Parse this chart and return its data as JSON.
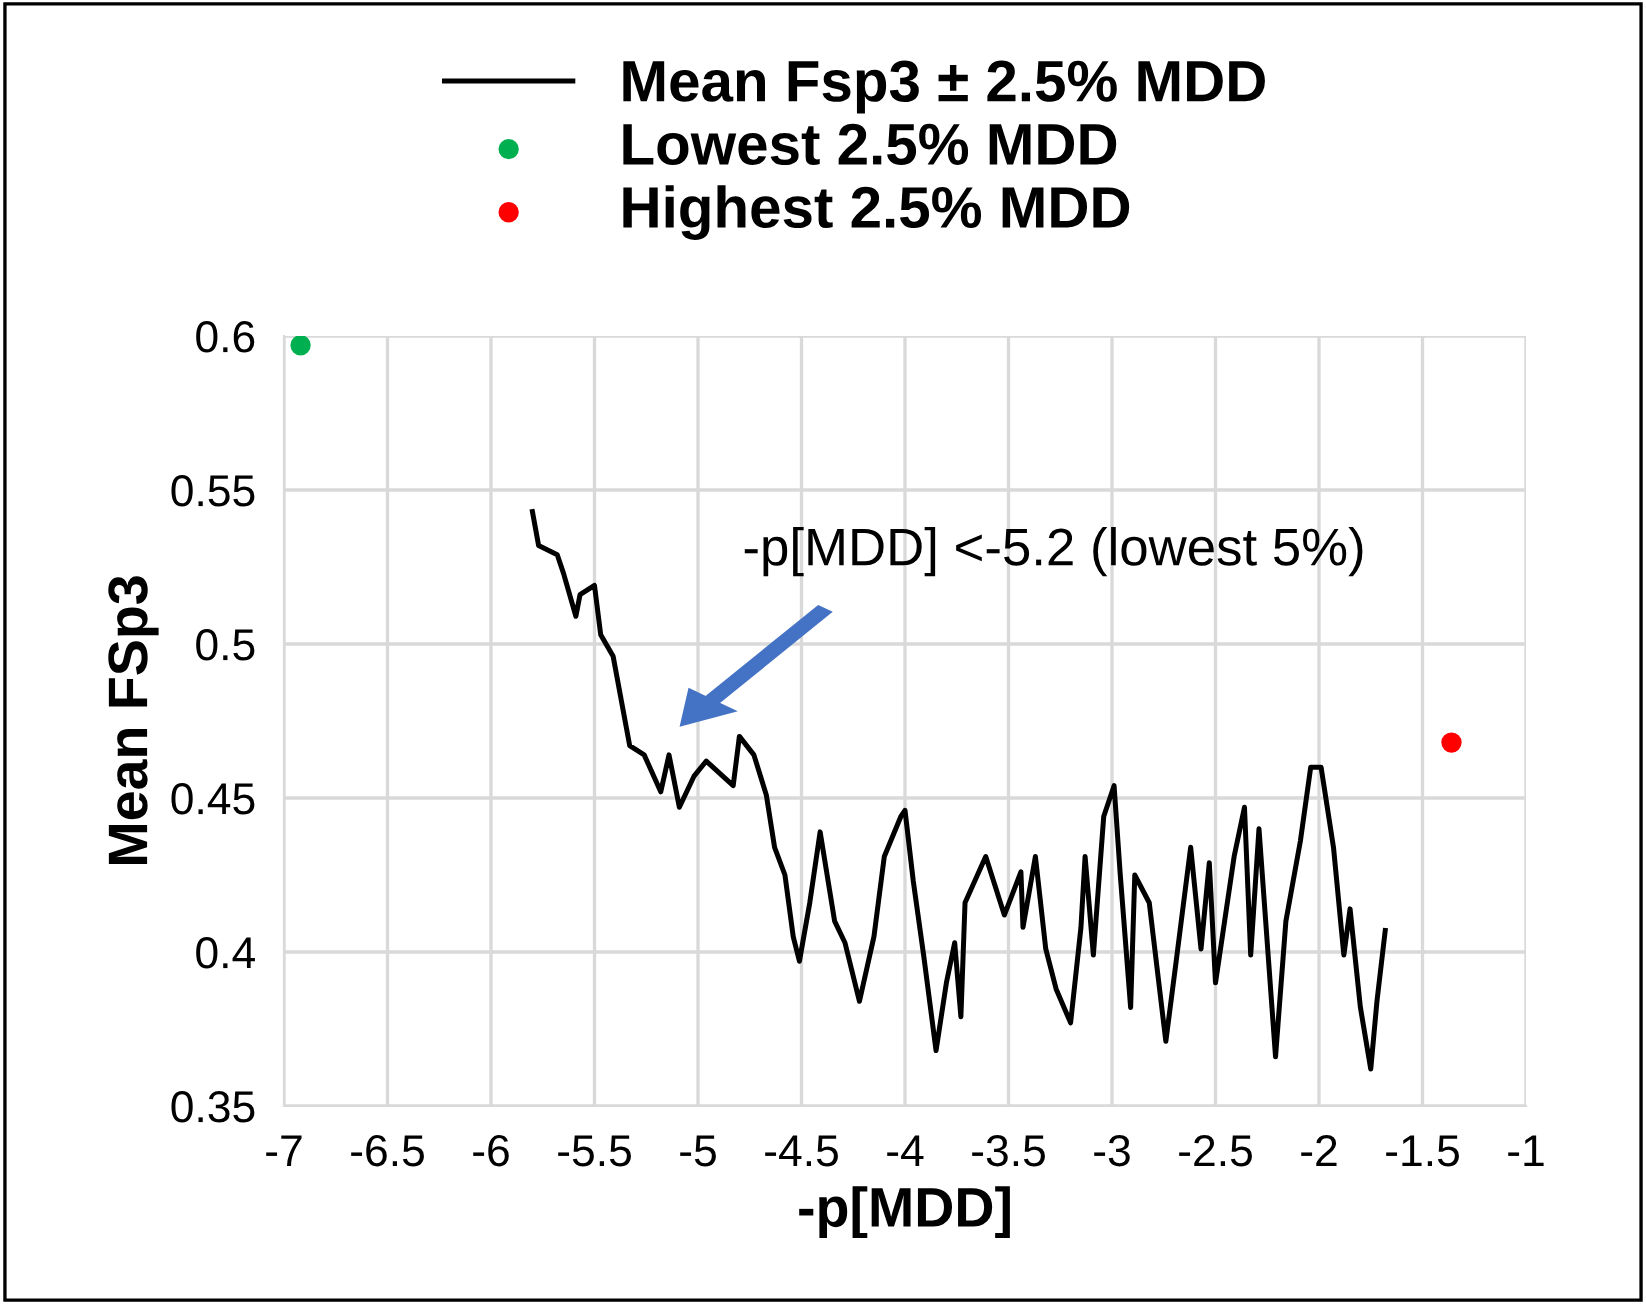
{
  "chart_data": {
    "type": "line",
    "xlabel": "-p[MDD]",
    "ylabel": "Mean FSp3",
    "xlim": [
      -7,
      -1
    ],
    "xticks": [
      -7,
      -6.5,
      -6,
      -5.5,
      -5,
      -4.5,
      -4,
      -3.5,
      -3,
      -2.5,
      -2,
      -1.5,
      -1
    ],
    "ylim": [
      0.35,
      0.6
    ],
    "yticks": [
      0.35,
      0.4,
      0.45,
      0.5,
      0.55,
      0.6
    ],
    "grid": true,
    "legend": "top",
    "annotations": [
      "-p[MDD] <-5.2 (lowest 5%)"
    ],
    "series": [
      {
        "name": "Mean Fsp3 ± 2.5% MDD",
        "color": "#000000",
        "marker": "none",
        "line_style": "solid",
        "x": [
          -5.8,
          -5.77,
          -5.68,
          -5.65,
          -5.59,
          -5.57,
          -5.5,
          -5.47,
          -5.41,
          -5.33,
          -5.26,
          -5.18,
          -5.14,
          -5.09,
          -5.02,
          -4.96,
          -4.83,
          -4.8,
          -4.73,
          -4.67,
          -4.63,
          -4.58,
          -4.54,
          -4.51,
          -4.46,
          -4.41,
          -4.34,
          -4.29,
          -4.22,
          -4.15,
          -4.1,
          -4.02,
          -4.0,
          -3.96,
          -3.91,
          -3.85,
          -3.8,
          -3.76,
          -3.73,
          -3.71,
          -3.61,
          -3.52,
          -3.44,
          -3.43,
          -3.37,
          -3.32,
          -3.27,
          -3.2,
          -3.15,
          -3.13,
          -3.09,
          -3.04,
          -2.99,
          -2.96,
          -2.91,
          -2.89,
          -2.82,
          -2.74,
          -2.69,
          -2.62,
          -2.57,
          -2.53,
          -2.5,
          -2.41,
          -2.36,
          -2.33,
          -2.29,
          -2.21,
          -2.16,
          -2.09,
          -2.04,
          -1.99,
          -1.93,
          -1.88,
          -1.85,
          -1.8,
          -1.75,
          -1.72,
          -1.68
        ],
        "values": [
          0.543,
          0.532,
          0.529,
          0.523,
          0.509,
          0.516,
          0.519,
          0.503,
          0.496,
          0.467,
          0.464,
          0.452,
          0.464,
          0.447,
          0.457,
          0.462,
          0.454,
          0.47,
          0.464,
          0.451,
          0.434,
          0.425,
          0.405,
          0.397,
          0.416,
          0.439,
          0.41,
          0.403,
          0.384,
          0.405,
          0.431,
          0.444,
          0.446,
          0.423,
          0.399,
          0.368,
          0.39,
          0.403,
          0.379,
          0.416,
          0.431,
          0.412,
          0.426,
          0.408,
          0.431,
          0.401,
          0.388,
          0.377,
          0.408,
          0.431,
          0.399,
          0.444,
          0.454,
          0.425,
          0.382,
          0.425,
          0.416,
          0.371,
          0.397,
          0.434,
          0.401,
          0.429,
          0.39,
          0.431,
          0.447,
          0.399,
          0.44,
          0.366,
          0.41,
          0.436,
          0.46,
          0.46,
          0.434,
          0.399,
          0.414,
          0.382,
          0.362,
          0.384,
          0.407
        ]
      },
      {
        "name": "Lowest 2.5% MDD",
        "type": "scatter",
        "color": "#00b050",
        "marker": "circle",
        "x": [
          -6.92
        ],
        "values": [
          0.597
        ]
      },
      {
        "name": "Highest 2.5% MDD",
        "type": "scatter",
        "color": "#ff0000",
        "marker": "circle",
        "x": [
          -1.36
        ],
        "values": [
          0.468
        ]
      }
    ]
  }
}
